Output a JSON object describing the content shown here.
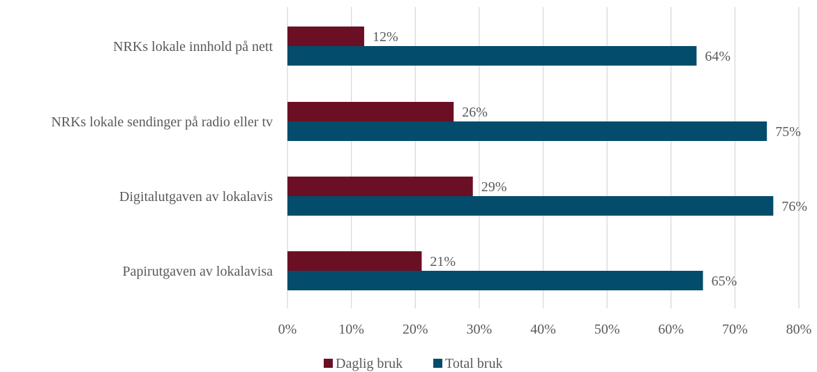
{
  "chart_data": {
    "type": "bar",
    "orientation": "horizontal",
    "categories": [
      "NRKs lokale innhold på nett",
      "NRKs lokale sendinger på radio eller tv",
      "Digitalutgaven av lokalavis",
      "Papirutgaven av lokalavisa"
    ],
    "series": [
      {
        "name": "Daglig bruk",
        "color": "#6b0f24",
        "values": [
          12,
          26,
          29,
          21
        ],
        "labels": [
          "12%",
          "26%",
          "29%",
          "21%"
        ]
      },
      {
        "name": "Total bruk",
        "color": "#044c6b",
        "values": [
          64,
          75,
          76,
          65
        ],
        "labels": [
          "64%",
          "75%",
          "76%",
          "65%"
        ]
      }
    ],
    "xlim": [
      0,
      80
    ],
    "ticks": [
      "0%",
      "10%",
      "20%",
      "30%",
      "40%",
      "50%",
      "60%",
      "70%",
      "80%"
    ],
    "title": "",
    "xlabel": "",
    "ylabel": "",
    "grid": "vertical",
    "legend_position": "bottom"
  }
}
